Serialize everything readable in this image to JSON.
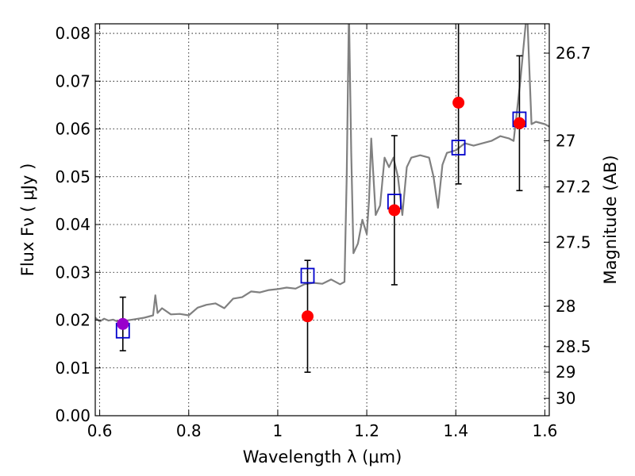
{
  "chart_data": {
    "type": "scatter",
    "xlabel": "Wavelength  λ (μm)",
    "ylabel": "Flux  Fν  ( μJy )",
    "ylabel_right": "Magnitude (AB)",
    "xlim": [
      0.59,
      1.61
    ],
    "ylim": [
      0.0,
      0.082
    ],
    "grid": true,
    "x_ticks": [
      {
        "value": 0.6,
        "label": "0.6"
      },
      {
        "value": 0.8,
        "label": "0.8"
      },
      {
        "value": 1.0,
        "label": "1"
      },
      {
        "value": 1.2,
        "label": "1.2"
      },
      {
        "value": 1.4,
        "label": "1.4"
      },
      {
        "value": 1.6,
        "label": "1.6"
      }
    ],
    "y_ticks": [
      {
        "value": 0.0,
        "label": "0.00"
      },
      {
        "value": 0.01,
        "label": "0.01"
      },
      {
        "value": 0.02,
        "label": "0.02"
      },
      {
        "value": 0.03,
        "label": "0.03"
      },
      {
        "value": 0.04,
        "label": "0.04"
      },
      {
        "value": 0.05,
        "label": "0.05"
      },
      {
        "value": 0.06,
        "label": "0.06"
      },
      {
        "value": 0.07,
        "label": "0.07"
      },
      {
        "value": 0.08,
        "label": "0.08"
      }
    ],
    "mag_ticks": [
      {
        "value": 26.7,
        "label": "26.7"
      },
      {
        "value": 27.0,
        "label": "27"
      },
      {
        "value": 27.2,
        "label": "27.2"
      },
      {
        "value": 27.5,
        "label": "27.5"
      },
      {
        "value": 28.0,
        "label": "28"
      },
      {
        "value": 28.5,
        "label": "28.5"
      },
      {
        "value": 29.0,
        "label": "29"
      },
      {
        "value": 30.0,
        "label": "30"
      }
    ],
    "colors": {
      "spectrum": "#808080",
      "observed": "#ff0000",
      "observed_optical": "#9900cc",
      "model": "#0000cc",
      "errorbar": "#000000",
      "grid": "#000000"
    },
    "spectrum": {
      "x": [
        0.59,
        0.6,
        0.61,
        0.62,
        0.63,
        0.64,
        0.66,
        0.68,
        0.7,
        0.72,
        0.725,
        0.73,
        0.74,
        0.76,
        0.78,
        0.8,
        0.82,
        0.84,
        0.86,
        0.88,
        0.9,
        0.92,
        0.94,
        0.96,
        0.98,
        1.0,
        1.02,
        1.04,
        1.06,
        1.08,
        1.1,
        1.12,
        1.14,
        1.15,
        1.155,
        1.16,
        1.165,
        1.17,
        1.18,
        1.19,
        1.2,
        1.205,
        1.21,
        1.22,
        1.23,
        1.24,
        1.25,
        1.26,
        1.27,
        1.28,
        1.29,
        1.3,
        1.32,
        1.34,
        1.35,
        1.36,
        1.37,
        1.38,
        1.4,
        1.42,
        1.44,
        1.46,
        1.48,
        1.5,
        1.52,
        1.53,
        1.545,
        1.56,
        1.57,
        1.58,
        1.6,
        1.61
      ],
      "y": [
        0.0205,
        0.0197,
        0.0203,
        0.0199,
        0.0201,
        0.0197,
        0.0199,
        0.0202,
        0.0205,
        0.021,
        0.0252,
        0.0215,
        0.0225,
        0.0212,
        0.0213,
        0.021,
        0.0226,
        0.0232,
        0.0235,
        0.0225,
        0.0245,
        0.0248,
        0.026,
        0.0258,
        0.0263,
        0.0265,
        0.0268,
        0.0266,
        0.0275,
        0.0278,
        0.0276,
        0.0285,
        0.0275,
        0.028,
        0.05,
        0.085,
        0.055,
        0.034,
        0.036,
        0.041,
        0.038,
        0.045,
        0.058,
        0.042,
        0.044,
        0.054,
        0.052,
        0.054,
        0.05,
        0.042,
        0.052,
        0.054,
        0.0545,
        0.054,
        0.05,
        0.0435,
        0.0525,
        0.055,
        0.0555,
        0.057,
        0.0565,
        0.057,
        0.0575,
        0.0585,
        0.058,
        0.0575,
        0.07,
        0.085,
        0.061,
        0.0615,
        0.061,
        0.0605
      ]
    },
    "observed": [
      {
        "x": 0.652,
        "y": 0.0192,
        "err": 0.0056,
        "optical": true
      },
      {
        "x": 1.067,
        "y": 0.0208,
        "err": 0.0117
      },
      {
        "x": 1.262,
        "y": 0.043,
        "err": 0.0156
      },
      {
        "x": 1.406,
        "y": 0.0655,
        "err": 0.017
      },
      {
        "x": 1.543,
        "y": 0.0612,
        "err": 0.0141
      }
    ],
    "model": [
      {
        "x": 0.652,
        "y": 0.0178
      },
      {
        "x": 1.067,
        "y": 0.0293
      },
      {
        "x": 1.262,
        "y": 0.0448
      },
      {
        "x": 1.406,
        "y": 0.0561
      },
      {
        "x": 1.543,
        "y": 0.062
      }
    ]
  }
}
